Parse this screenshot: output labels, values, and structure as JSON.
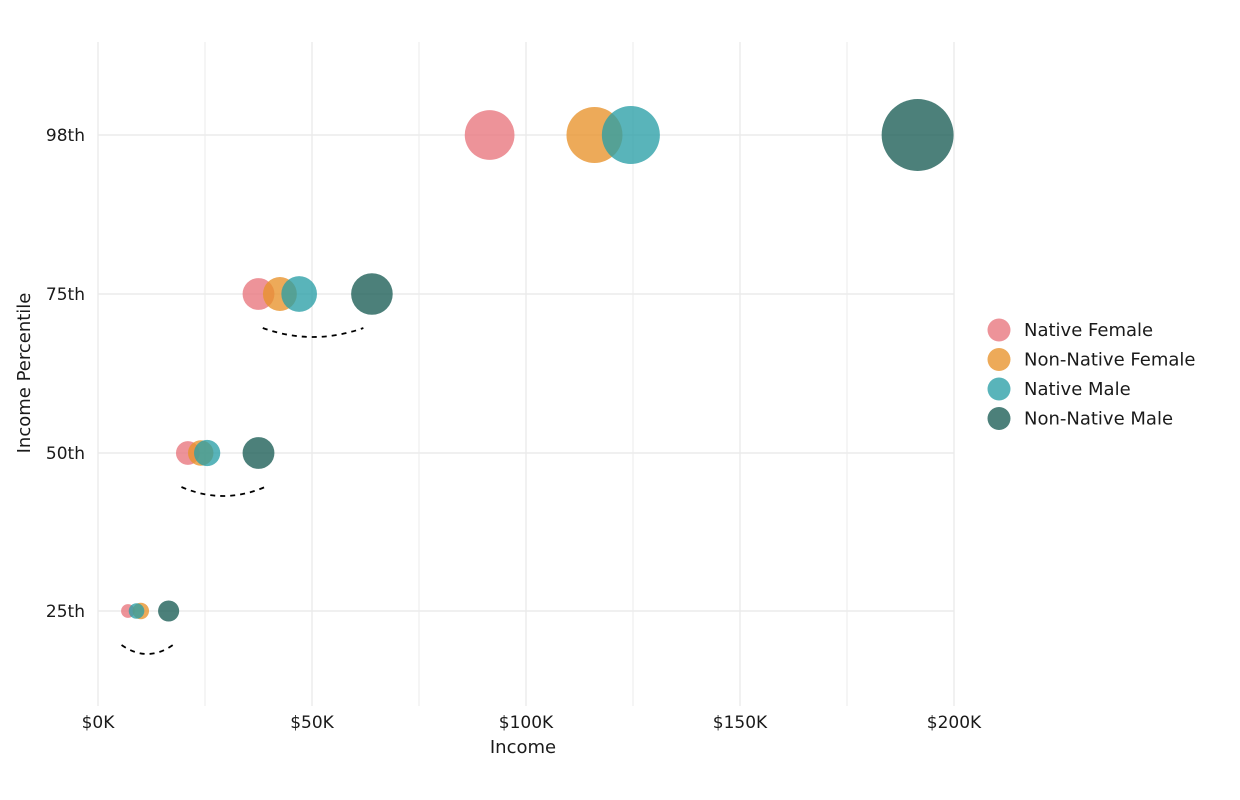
{
  "chart_data": {
    "type": "scatter",
    "xlabel": "Income",
    "ylabel": "Income Percentile",
    "xlim": [
      0,
      200000
    ],
    "x_ticks": [
      0,
      50000,
      100000,
      150000,
      200000
    ],
    "x_tick_labels": [
      "$0K",
      "$50K",
      "$100K",
      "$150K",
      "$200K"
    ],
    "y_categories": [
      "25th",
      "50th",
      "75th",
      "98th"
    ],
    "grid": true,
    "legend_position": "right",
    "size_encodes": "income",
    "series": [
      {
        "name": "Native Female",
        "color": "#E8747C",
        "points": [
          {
            "y": "25th",
            "x": 7000
          },
          {
            "y": "50th",
            "x": 21000
          },
          {
            "y": "75th",
            "x": 37500
          },
          {
            "y": "98th",
            "x": 91500
          }
        ]
      },
      {
        "name": "Non-Native Female",
        "color": "#E8922A",
        "points": [
          {
            "y": "25th",
            "x": 10000
          },
          {
            "y": "50th",
            "x": 24000
          },
          {
            "y": "75th",
            "x": 42500
          },
          {
            "y": "98th",
            "x": 116000
          }
        ]
      },
      {
        "name": "Native Male",
        "color": "#2A9FA6",
        "points": [
          {
            "y": "25th",
            "x": 9000
          },
          {
            "y": "50th",
            "x": 25500
          },
          {
            "y": "75th",
            "x": 47000
          },
          {
            "y": "98th",
            "x": 124500
          }
        ]
      },
      {
        "name": "Non-Native Male",
        "color": "#1A5C55",
        "points": [
          {
            "y": "25th",
            "x": 16500
          },
          {
            "y": "50th",
            "x": 37500
          },
          {
            "y": "75th",
            "x": 64000
          },
          {
            "y": "98th",
            "x": 191500
          }
        ]
      }
    ],
    "annotations": [
      {
        "type": "dashed-arc",
        "y": "25th",
        "x_from": 5500,
        "x_to": 17500
      },
      {
        "type": "dashed-arc",
        "y": "50th",
        "x_from": 19500,
        "x_to": 39000
      },
      {
        "type": "dashed-arc",
        "y": "75th",
        "x_from": 38500,
        "x_to": 62000
      }
    ]
  }
}
